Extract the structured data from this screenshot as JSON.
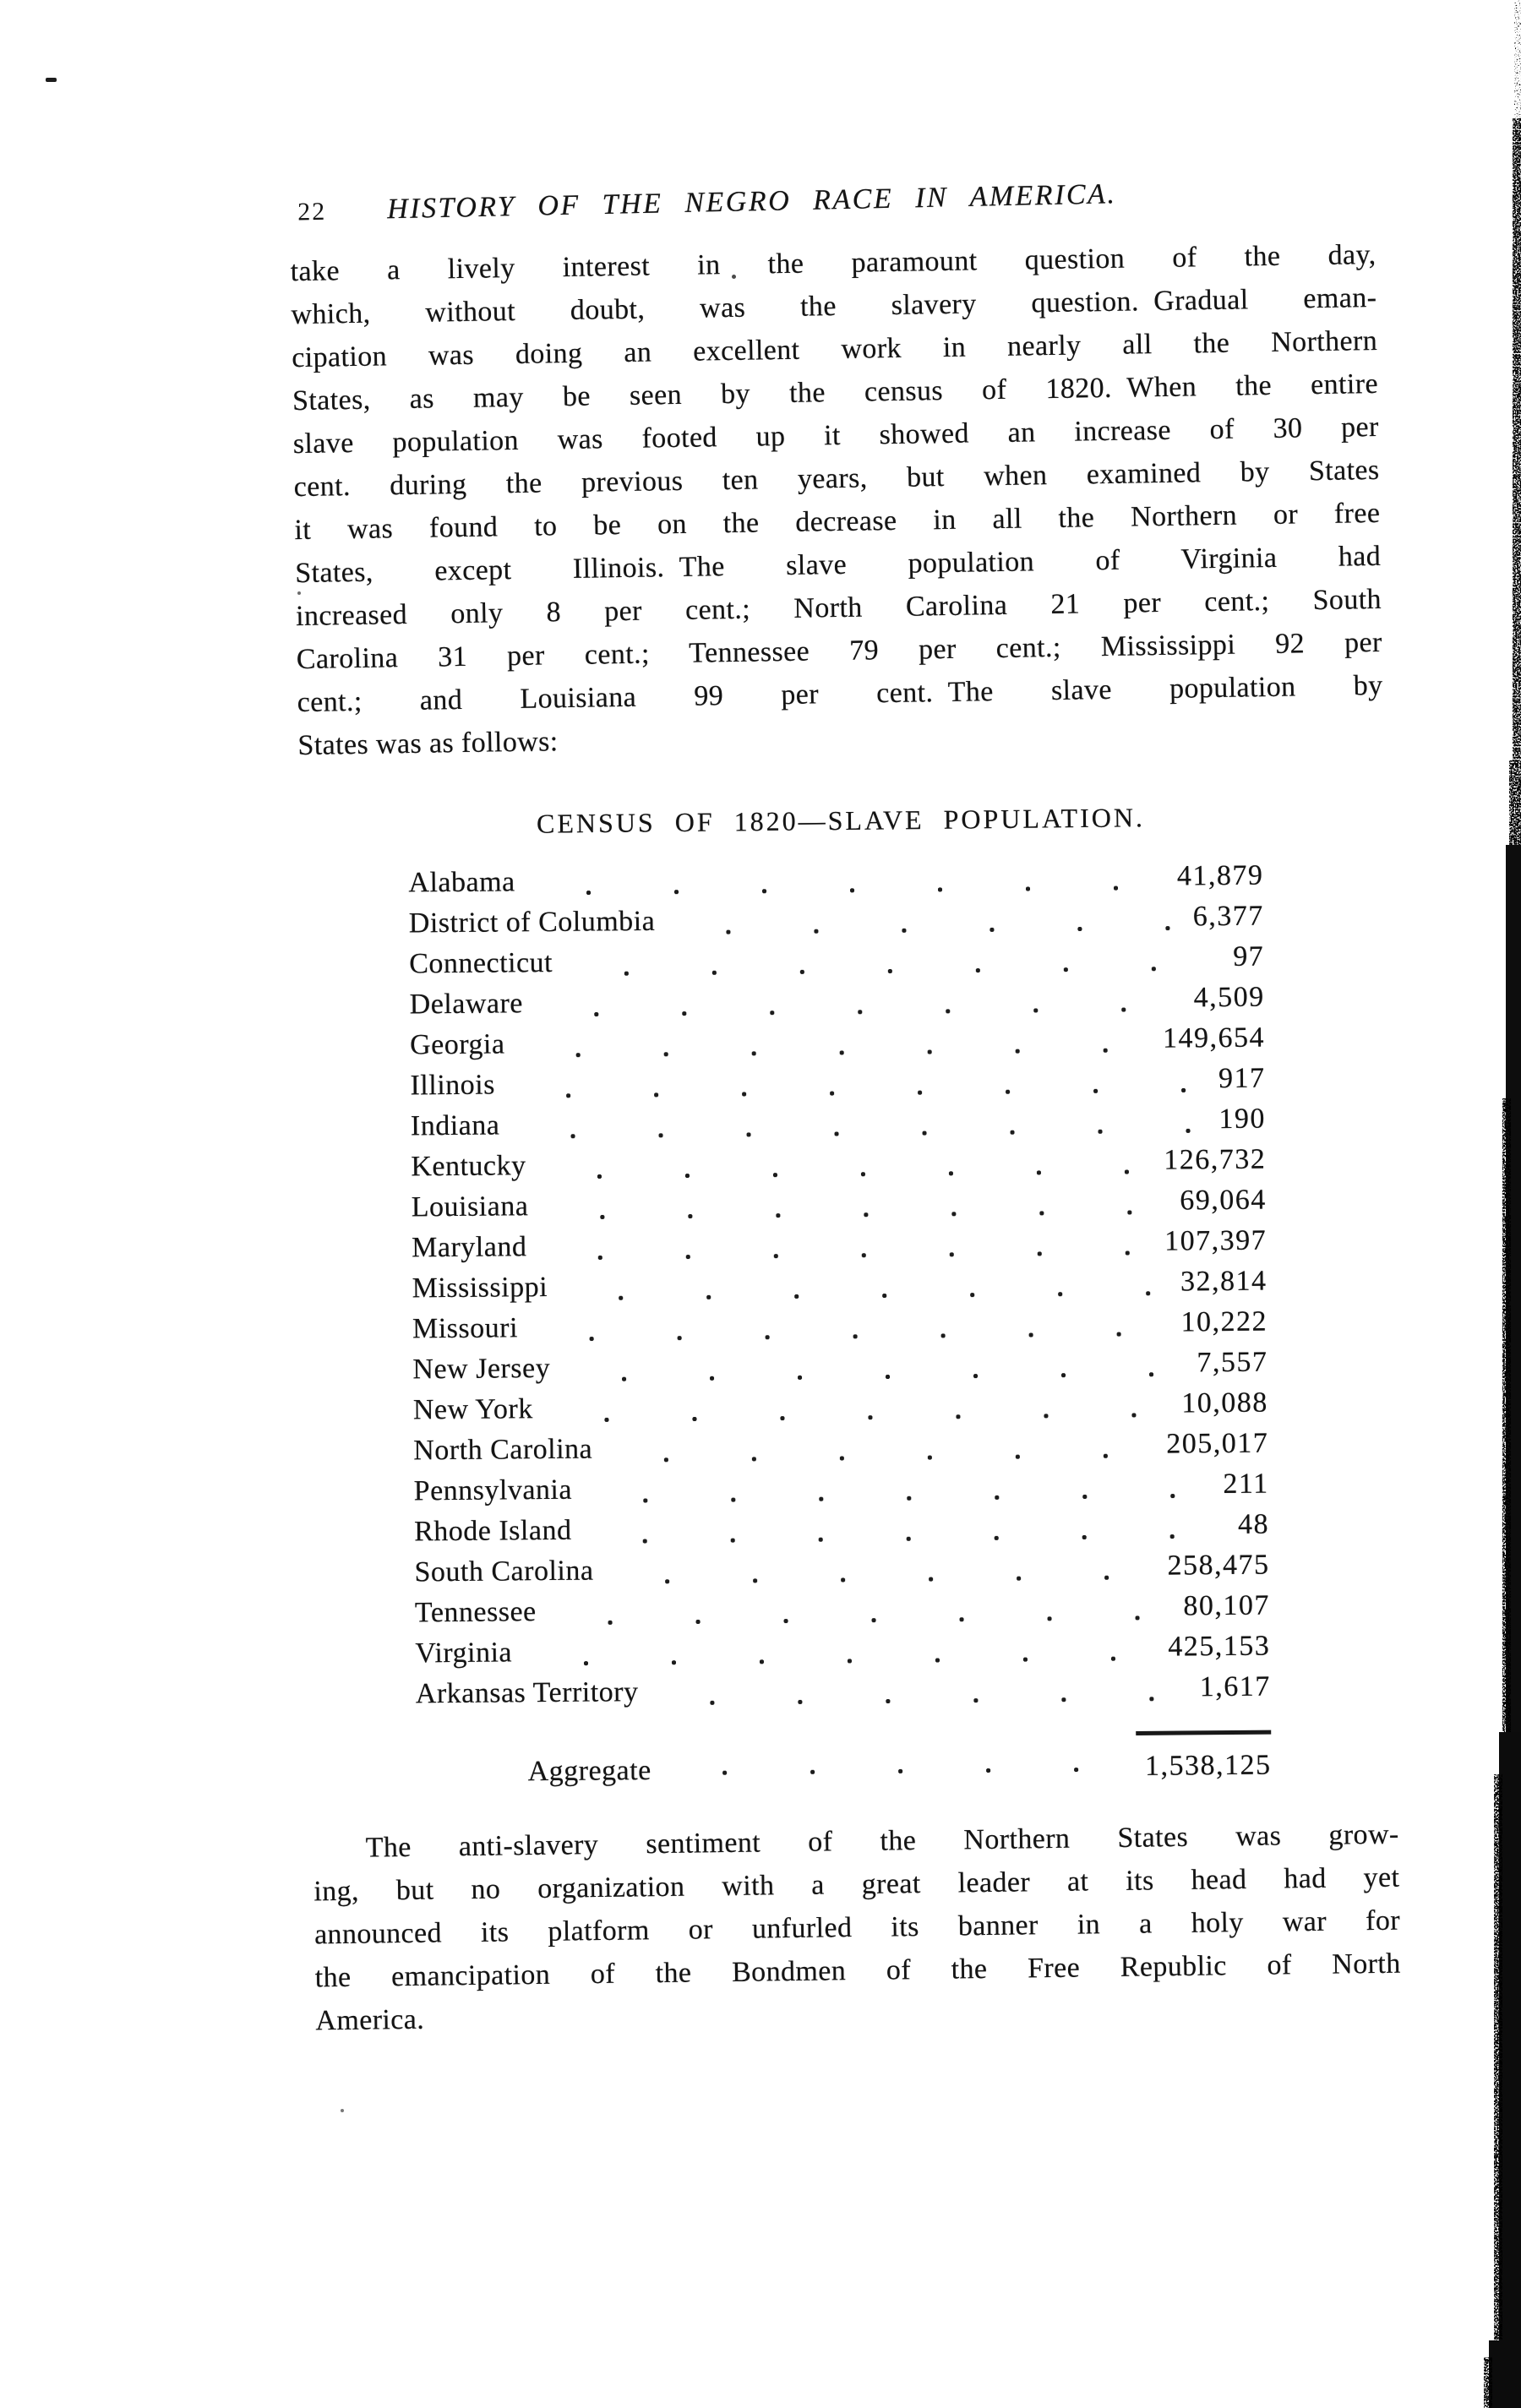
{
  "header": {
    "page_number": "22",
    "running_title": "HISTORY OF THE NEGRO RACE IN AMERICA."
  },
  "paragraph1": {
    "lines": [
      "take a lively interest in the paramount question of the day,",
      "which, without doubt, was the slavery question. Gradual eman-",
      "cipation was doing an excellent work in nearly all the Northern",
      "States, as may be seen by the census of 1820. When the entire",
      "slave population was footed up it showed an increase of 30 per",
      "cent. during the previous ten years, but when examined by States",
      "it was found to be on the decrease in all the Northern or free",
      "States, except Illinois. The slave population of Virginia had",
      "increased only 8 per cent.; North Carolina 21 per cent.; South",
      "Carolina 31 per cent.; Tennessee 79 per cent.; Mississippi 92 per",
      "cent.; and Louisiana 99 per cent. The slave population by",
      "States was as follows:"
    ]
  },
  "census_table": {
    "caption": "CENSUS OF 1820—SLAVE POPULATION.",
    "rows": [
      {
        "state": "Alabama",
        "population": "41,879"
      },
      {
        "state": "District of Columbia",
        "population": "6,377"
      },
      {
        "state": "Connecticut",
        "population": "97"
      },
      {
        "state": "Delaware",
        "population": "4,509"
      },
      {
        "state": "Georgia",
        "population": "149,654"
      },
      {
        "state": "Illinois",
        "population": "917"
      },
      {
        "state": "Indiana",
        "population": "190"
      },
      {
        "state": "Kentucky",
        "population": "126,732"
      },
      {
        "state": "Louisiana",
        "population": "69,064"
      },
      {
        "state": "Maryland",
        "population": "107,397"
      },
      {
        "state": "Mississippi",
        "population": "32,814"
      },
      {
        "state": "Missouri",
        "population": "10,222"
      },
      {
        "state": "New Jersey",
        "population": "7,557"
      },
      {
        "state": "New York",
        "population": "10,088"
      },
      {
        "state": "North Carolina",
        "population": "205,017"
      },
      {
        "state": "Pennsylvania",
        "population": "211"
      },
      {
        "state": "Rhode Island",
        "population": "48"
      },
      {
        "state": "South Carolina",
        "population": "258,475"
      },
      {
        "state": "Tennessee",
        "population": "80,107"
      },
      {
        "state": "Virginia",
        "population": "425,153"
      },
      {
        "state": "Arkansas Territory",
        "population": "1,617"
      }
    ],
    "aggregate": {
      "label": "Aggregate",
      "value": "1,538,125"
    }
  },
  "paragraph2": {
    "lines": [
      "The anti-slavery sentiment of the Northern States was grow-",
      "ing, but no organization with a great leader at its head had yet",
      "announced its platform or unfurled its banner in a holy war for",
      "the emancipation of the Bondmen of the Free Republic of North",
      "America."
    ]
  }
}
